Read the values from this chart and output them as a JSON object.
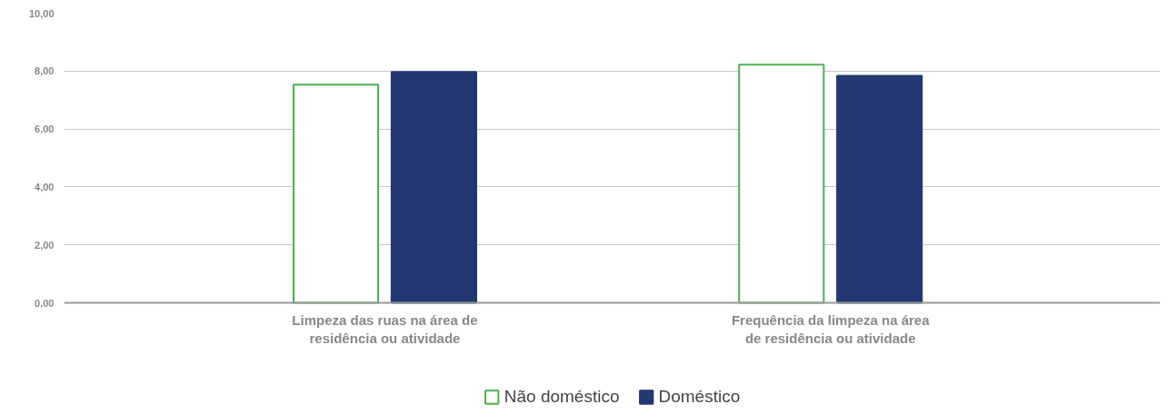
{
  "chart_data": {
    "type": "bar",
    "categories": [
      "Limpeza das ruas na área de residência ou atividade",
      "Frequência da limpeza na área de residência ou atividade"
    ],
    "series": [
      {
        "name": "Não doméstico",
        "color": "#4caf50",
        "values": [
          7.53,
          8.22
        ]
      },
      {
        "name": "Doméstico",
        "color": "#233772",
        "values": [
          7.97,
          7.84
        ]
      }
    ],
    "ylim": [
      0,
      10
    ],
    "yticks": [
      {
        "value": 0,
        "label": "0,00"
      },
      {
        "value": 2,
        "label": "2,00"
      },
      {
        "value": 4,
        "label": "4,00"
      },
      {
        "value": 6,
        "label": "6,00"
      },
      {
        "value": 8,
        "label": "8,00"
      },
      {
        "value": 10,
        "label": "10,00"
      }
    ],
    "grid": "y",
    "legend": "bottom"
  }
}
